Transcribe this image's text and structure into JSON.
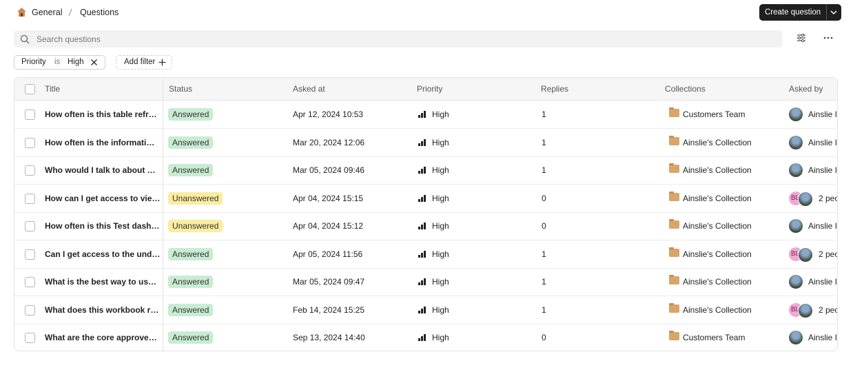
{
  "breadcrumb": [
    "General",
    "Questions"
  ],
  "create_button": "Create question",
  "search_placeholder": "Search questions",
  "filter": {
    "field": "Priority",
    "operator": "is",
    "value": "High"
  },
  "add_filter": "Add filter",
  "table": {
    "columns": [
      "Title",
      "Status",
      "Asked at",
      "Priority",
      "Replies",
      "Collections",
      "Asked by"
    ],
    "rows": [
      {
        "title": "How often is this table refr…",
        "status": "Answered",
        "status_color": "#c8ecd1",
        "asked_at": "Apr 12, 2024 10:53",
        "priority": "High",
        "replies": 1,
        "collection": "Customers Team",
        "asked_by": "Ainslie I"
      },
      {
        "title": "How often is the informati…",
        "status": "Answered",
        "status_color": "#c8ecd1",
        "asked_at": "Mar 20, 2024 12:06",
        "priority": "High",
        "replies": 1,
        "collection": "Ainslie's Collection",
        "asked_by": "Ainslie I"
      },
      {
        "title": "Who would I talk to about …",
        "status": "Answered",
        "status_color": "#c8ecd1",
        "asked_at": "Mar 05, 2024 09:46",
        "priority": "High",
        "replies": 1,
        "collection": "Ainslie's Collection",
        "asked_by": "Ainslie I"
      },
      {
        "title": "How can I get access to vie…",
        "status": "Unanswered",
        "status_color": "#fbeca0",
        "asked_at": "Apr 04, 2024 15:15",
        "priority": "High",
        "replies": 0,
        "collection": "Ainslie's Collection",
        "asked_by": "2 peo",
        "initials": "BL"
      },
      {
        "title": "How often is this Test dash…",
        "status": "Unanswered",
        "status_color": "#fbeca0",
        "asked_at": "Apr 04, 2024 15:12",
        "priority": "High",
        "replies": 0,
        "collection": "Ainslie's Collection",
        "asked_by": "Ainslie I"
      },
      {
        "title": "Can I get access to the und…",
        "status": "Answered",
        "status_color": "#c8ecd1",
        "asked_at": "Apr 05, 2024 11:56",
        "priority": "High",
        "replies": 1,
        "collection": "Ainslie's Collection",
        "asked_by": "2 peo",
        "initials": "BL"
      },
      {
        "title": "What is the best way to us…",
        "status": "Answered",
        "status_color": "#c8ecd1",
        "asked_at": "Mar 05, 2024 09:47",
        "priority": "High",
        "replies": 1,
        "collection": "Ainslie's Collection",
        "asked_by": "Ainslie I"
      },
      {
        "title": "What does this workbook r…",
        "status": "Answered",
        "status_color": "#c8ecd1",
        "asked_at": "Feb 14, 2024 15:25",
        "priority": "High",
        "replies": 1,
        "collection": "Ainslie's Collection",
        "asked_by": "2 peo",
        "initials": "BL"
      },
      {
        "title": "What are the core approve…",
        "status": "Answered",
        "status_color": "#c8ecd1",
        "asked_at": "Sep 13, 2024 14:40",
        "priority": "High",
        "replies": 0,
        "collection": "Customers Team",
        "asked_by": "Ainslie I"
      }
    ]
  }
}
